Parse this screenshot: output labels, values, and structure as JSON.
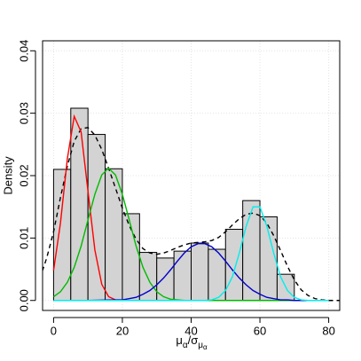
{
  "chart_data": {
    "type": "histogram",
    "ylabel": "Density",
    "xlabel": [
      "μ",
      "α",
      "/σ",
      "μ",
      "α"
    ],
    "bins": [
      0,
      5,
      10,
      15,
      20,
      25,
      30,
      35,
      40,
      45,
      50,
      55,
      60,
      65,
      70
    ],
    "values": [
      0.021,
      0.0308,
      0.0266,
      0.0211,
      0.0139,
      0.0077,
      0.0068,
      0.0079,
      0.0092,
      0.0082,
      0.0114,
      0.016,
      0.0134,
      0.0042
    ],
    "color": "#d3d3d3",
    "xlim": [
      -3.2,
      83.2
    ],
    "ylim": [
      -0.0016,
      0.0416
    ],
    "xticks": [
      0,
      20,
      40,
      60,
      80
    ],
    "yticks": [
      {
        "value": 0,
        "label": "0.00"
      },
      {
        "value": 0.01,
        "label": "0.01"
      },
      {
        "value": 0.02,
        "label": "0.02"
      },
      {
        "value": 0.03,
        "label": "0.03"
      },
      {
        "value": 0.04,
        "label": "0.04"
      }
    ],
    "grid": true,
    "series": [
      {
        "color": "#000000",
        "dashed": true,
        "x": [
          -4,
          -2,
          0,
          2,
          4,
          6,
          8,
          10,
          12,
          14,
          16,
          18,
          20,
          22,
          24,
          26,
          28,
          30,
          32,
          34,
          36,
          38,
          40,
          42,
          44,
          46,
          48,
          50,
          52,
          54,
          56,
          58,
          60,
          62,
          64,
          66,
          68,
          70,
          72,
          74,
          76,
          78,
          80,
          82,
          84
        ],
        "values": [
          0.0035,
          0.0068,
          0.011,
          0.0165,
          0.0215,
          0.0255,
          0.0275,
          0.0277,
          0.0265,
          0.0242,
          0.0212,
          0.018,
          0.0148,
          0.012,
          0.0098,
          0.0083,
          0.0076,
          0.0074,
          0.0076,
          0.008,
          0.0085,
          0.0089,
          0.0092,
          0.0093,
          0.0094,
          0.0096,
          0.0101,
          0.011,
          0.0121,
          0.0131,
          0.0138,
          0.014,
          0.0136,
          0.0124,
          0.0104,
          0.008,
          0.0055,
          0.0033,
          0.0017,
          0.0008,
          0.0003,
          0.0001,
          0,
          0,
          0
        ]
      },
      {
        "color": "#ff0000",
        "dashed": false,
        "x": [
          0,
          2,
          4,
          6,
          8,
          10,
          12,
          14,
          16,
          18,
          20,
          30,
          40,
          50,
          60,
          70,
          80
        ],
        "values": [
          0.0048,
          0.0124,
          0.0227,
          0.0295,
          0.027,
          0.0175,
          0.0081,
          0.0026,
          0.0006,
          0.0001,
          0,
          0,
          0,
          0,
          0,
          0,
          0
        ]
      },
      {
        "color": "#00bb00",
        "dashed": false,
        "x": [
          0,
          2,
          4,
          6,
          8,
          10,
          12,
          14,
          16,
          18,
          20,
          22,
          24,
          26,
          28,
          30,
          32,
          34,
          36,
          38,
          50,
          60,
          70,
          80
        ],
        "values": [
          0.0006,
          0.0014,
          0.0029,
          0.0053,
          0.0087,
          0.0129,
          0.017,
          0.0201,
          0.0212,
          0.0201,
          0.017,
          0.0129,
          0.0087,
          0.0053,
          0.0029,
          0.0014,
          0.0006,
          0.0002,
          0.0001,
          0,
          0,
          0,
          0,
          0
        ]
      },
      {
        "color": "#0000cc",
        "dashed": false,
        "x": [
          0,
          10,
          18,
          20,
          22,
          24,
          26,
          28,
          30,
          32,
          34,
          36,
          38,
          40,
          42,
          44,
          46,
          48,
          50,
          52,
          54,
          56,
          58,
          60,
          62,
          64,
          66,
          68,
          70,
          80
        ],
        "values": [
          0,
          0,
          0.0001,
          0.0001,
          0.0003,
          0.0005,
          0.001,
          0.0016,
          0.0025,
          0.0036,
          0.0049,
          0.0063,
          0.0076,
          0.0086,
          0.0091,
          0.0091,
          0.0086,
          0.0076,
          0.0063,
          0.0049,
          0.0036,
          0.0025,
          0.0016,
          0.001,
          0.0005,
          0.0003,
          0.0001,
          0.0001,
          0,
          0
        ]
      },
      {
        "color": "#00eeee",
        "dashed": false,
        "x": [
          0,
          20,
          40,
          44,
          46,
          48,
          50,
          52,
          54,
          56,
          58,
          60,
          62,
          64,
          66,
          68,
          70,
          72,
          74,
          80
        ],
        "values": [
          0,
          0,
          0,
          0,
          0.0001,
          0.0005,
          0.0016,
          0.0038,
          0.0076,
          0.0119,
          0.015,
          0.015,
          0.0119,
          0.0076,
          0.0038,
          0.0016,
          0.0005,
          0.0001,
          0,
          0
        ]
      }
    ]
  }
}
